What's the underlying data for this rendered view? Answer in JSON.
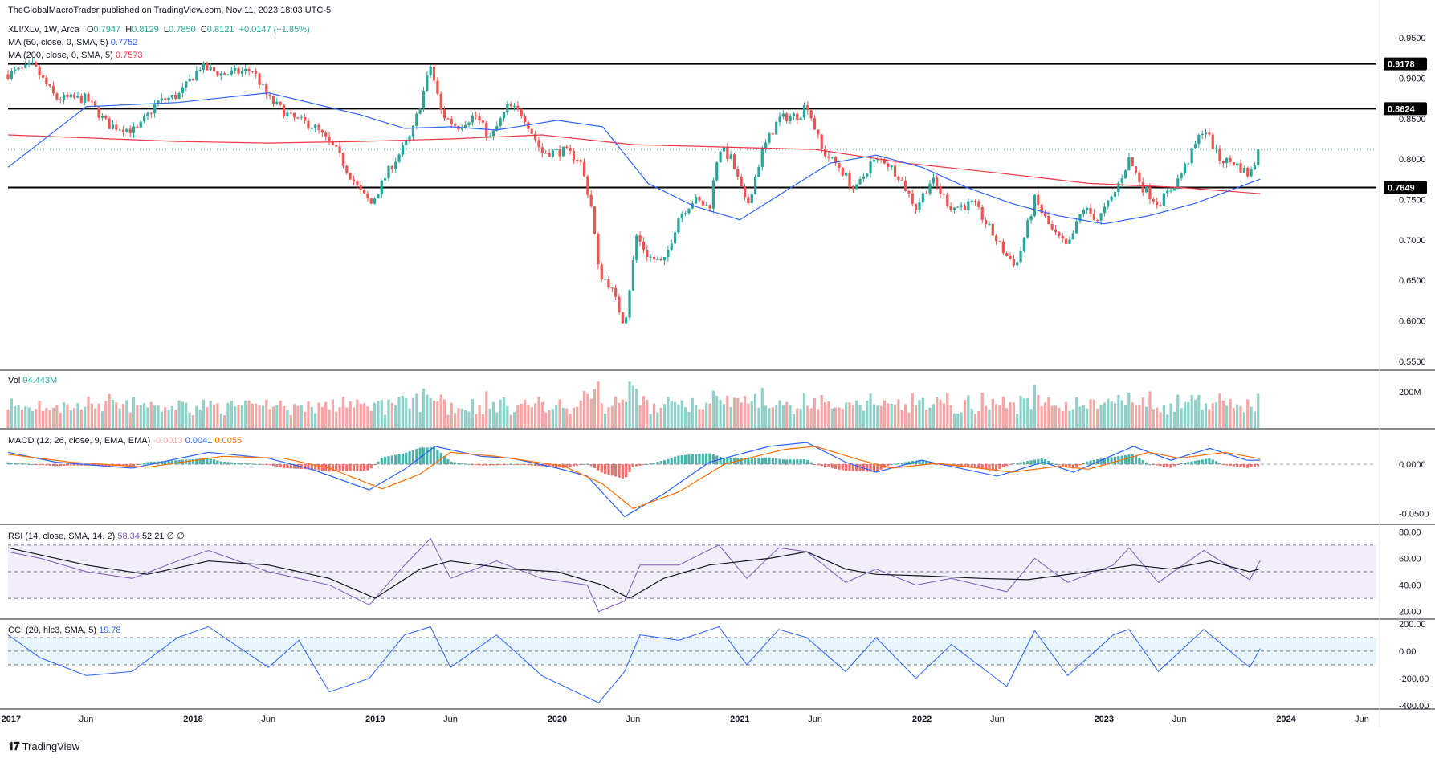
{
  "header": {
    "publisher": "TheGlobalMacroTrader published on TradingView.com, Nov 11, 2023 18:03 UTC-5"
  },
  "legend": {
    "symbol": "XLI/XLV, 1W, Arca",
    "open_lbl": "O",
    "open": "0.7947",
    "high_lbl": "H",
    "high": "0.8129",
    "low_lbl": "L",
    "low": "0.7850",
    "close_lbl": "C",
    "close": "0.8121",
    "change": "+0.0147 (+1.85%)",
    "ma50_label": "MA (50, close, 0, SMA, 5)",
    "ma50_value": "0.7752",
    "ma200_label": "MA (200, close, 0, SMA, 5)",
    "ma200_value": "0.7573",
    "vol_label": "Vol",
    "vol_value": "94.443M",
    "macd_label": "MACD (12, 26, close, 9, EMA, EMA)",
    "macd_hist": "-0.0013",
    "macd_line": "0.0041",
    "macd_signal": "0.0055",
    "rsi_label": "RSI (14, close, SMA, 14, 2)",
    "rsi_value": "58.34",
    "rsi_ma": "52.21",
    "rsi_d1": "∅",
    "rsi_d2": "∅",
    "cci_label": "CCI (20, hlc3, SMA, 5)",
    "cci_value": "19.78"
  },
  "colors": {
    "up": "#26a69a",
    "down": "#ef5350",
    "ma50": "#2962ff",
    "ma200": "#f23645",
    "macd": "#2962ff",
    "signal": "#ff6d00",
    "rsi": "#7e57c2",
    "cci": "#2962ff",
    "vol_up": "#8fd1c9",
    "vol_down": "#f4a6a4"
  },
  "chart_data": {
    "type": "candlestick",
    "symbol": "XLI/XLV",
    "timeframe": "1W",
    "x_range": [
      "2016-12-26",
      "2024-06-30"
    ],
    "x_ticks": [
      {
        "date": "2017-01-01",
        "label": "2017"
      },
      {
        "date": "2017-06-01",
        "label": "Jun"
      },
      {
        "date": "2018-01-01",
        "label": "2018"
      },
      {
        "date": "2018-06-01",
        "label": "Jun"
      },
      {
        "date": "2019-01-01",
        "label": "2019"
      },
      {
        "date": "2019-06-01",
        "label": "Jun"
      },
      {
        "date": "2020-01-01",
        "label": "2020"
      },
      {
        "date": "2020-06-01",
        "label": "Jun"
      },
      {
        "date": "2021-01-01",
        "label": "2021"
      },
      {
        "date": "2021-06-01",
        "label": "Jun"
      },
      {
        "date": "2022-01-01",
        "label": "2022"
      },
      {
        "date": "2022-06-01",
        "label": "Jun"
      },
      {
        "date": "2023-01-01",
        "label": "2023"
      },
      {
        "date": "2023-06-01",
        "label": "Jun"
      },
      {
        "date": "2024-01-01",
        "label": "2024"
      },
      {
        "date": "2024-06-01",
        "label": "Jun"
      }
    ],
    "price_axis": {
      "ylim": [
        0.54,
        0.975
      ],
      "ticks": [
        "0.9500",
        "0.9000",
        "0.8500",
        "0.8000",
        "0.7500",
        "0.7000",
        "0.6500",
        "0.6000",
        "0.5500"
      ]
    },
    "horizontal_levels": [
      "0.9178",
      "0.8624",
      "0.7649"
    ],
    "last_close": 0.8121,
    "close_path": [
      [
        "2016-12-26",
        0.905
      ],
      [
        "2017-02-15",
        0.915
      ],
      [
        "2017-04-01",
        0.875
      ],
      [
        "2017-06-01",
        0.875
      ],
      [
        "2017-07-15",
        0.842
      ],
      [
        "2017-09-10",
        0.835
      ],
      [
        "2017-10-20",
        0.87
      ],
      [
        "2017-12-05",
        0.88
      ],
      [
        "2018-01-15",
        0.914
      ],
      [
        "2018-03-01",
        0.905
      ],
      [
        "2018-05-01",
        0.91
      ],
      [
        "2018-06-01",
        0.875
      ],
      [
        "2018-07-15",
        0.852
      ],
      [
        "2018-09-01",
        0.84
      ],
      [
        "2018-10-15",
        0.81
      ],
      [
        "2018-12-01",
        0.76
      ],
      [
        "2018-12-24",
        0.745
      ],
      [
        "2019-02-01",
        0.79
      ],
      [
        "2019-03-15",
        0.83
      ],
      [
        "2019-04-22",
        0.915
      ],
      [
        "2019-05-15",
        0.855
      ],
      [
        "2019-06-15",
        0.84
      ],
      [
        "2019-07-20",
        0.855
      ],
      [
        "2019-08-20",
        0.825
      ],
      [
        "2019-09-25",
        0.866
      ],
      [
        "2019-10-25",
        0.855
      ],
      [
        "2019-12-01",
        0.808
      ],
      [
        "2020-01-15",
        0.81
      ],
      [
        "2020-02-15",
        0.8
      ],
      [
        "2020-03-10",
        0.74
      ],
      [
        "2020-03-24",
        0.66
      ],
      [
        "2020-04-15",
        0.645
      ],
      [
        "2020-05-15",
        0.595
      ],
      [
        "2020-06-08",
        0.705
      ],
      [
        "2020-07-01",
        0.68
      ],
      [
        "2020-08-01",
        0.67
      ],
      [
        "2020-09-01",
        0.73
      ],
      [
        "2020-10-01",
        0.75
      ],
      [
        "2020-11-01",
        0.74
      ],
      [
        "2020-11-20",
        0.815
      ],
      [
        "2020-12-15",
        0.8
      ],
      [
        "2021-01-15",
        0.74
      ],
      [
        "2021-02-15",
        0.81
      ],
      [
        "2021-03-20",
        0.85
      ],
      [
        "2021-05-01",
        0.855
      ],
      [
        "2021-05-15",
        0.87
      ],
      [
        "2021-06-15",
        0.81
      ],
      [
        "2021-07-20",
        0.79
      ],
      [
        "2021-08-20",
        0.76
      ],
      [
        "2021-09-20",
        0.795
      ],
      [
        "2021-10-15",
        0.8
      ],
      [
        "2021-11-15",
        0.78
      ],
      [
        "2021-12-20",
        0.74
      ],
      [
        "2022-01-20",
        0.775
      ],
      [
        "2022-03-01",
        0.74
      ],
      [
        "2022-04-15",
        0.745
      ],
      [
        "2022-05-20",
        0.71
      ],
      [
        "2022-06-20",
        0.68
      ],
      [
        "2022-07-10",
        0.67
      ],
      [
        "2022-08-15",
        0.75
      ],
      [
        "2022-09-20",
        0.71
      ],
      [
        "2022-10-20",
        0.69
      ],
      [
        "2022-11-20",
        0.74
      ],
      [
        "2022-12-20",
        0.725
      ],
      [
        "2023-01-20",
        0.755
      ],
      [
        "2023-02-20",
        0.8
      ],
      [
        "2023-03-20",
        0.765
      ],
      [
        "2023-04-20",
        0.745
      ],
      [
        "2023-05-25",
        0.77
      ],
      [
        "2023-06-20",
        0.8
      ],
      [
        "2023-07-20",
        0.84
      ],
      [
        "2023-08-20",
        0.8
      ],
      [
        "2023-09-20",
        0.795
      ],
      [
        "2023-10-20",
        0.78
      ],
      [
        "2023-11-10",
        0.8121
      ]
    ],
    "ma50_path": [
      [
        "2016-12-26",
        0.79
      ],
      [
        "2017-06-01",
        0.865
      ],
      [
        "2017-12-01",
        0.87
      ],
      [
        "2018-06-01",
        0.882
      ],
      [
        "2018-12-01",
        0.855
      ],
      [
        "2019-03-01",
        0.838
      ],
      [
        "2019-06-01",
        0.84
      ],
      [
        "2019-09-01",
        0.836
      ],
      [
        "2020-01-01",
        0.848
      ],
      [
        "2020-04-01",
        0.84
      ],
      [
        "2020-07-01",
        0.77
      ],
      [
        "2020-10-01",
        0.742
      ],
      [
        "2021-01-01",
        0.725
      ],
      [
        "2021-04-01",
        0.76
      ],
      [
        "2021-07-01",
        0.795
      ],
      [
        "2021-10-01",
        0.805
      ],
      [
        "2022-01-01",
        0.79
      ],
      [
        "2022-04-01",
        0.765
      ],
      [
        "2022-07-01",
        0.745
      ],
      [
        "2022-10-01",
        0.73
      ],
      [
        "2023-01-01",
        0.72
      ],
      [
        "2023-04-01",
        0.73
      ],
      [
        "2023-07-01",
        0.745
      ],
      [
        "2023-11-10",
        0.7752
      ]
    ],
    "ma200_path": [
      [
        "2016-12-26",
        0.83
      ],
      [
        "2017-12-01",
        0.822
      ],
      [
        "2018-06-01",
        0.82
      ],
      [
        "2018-12-01",
        0.822
      ],
      [
        "2019-06-01",
        0.825
      ],
      [
        "2019-12-01",
        0.83
      ],
      [
        "2020-06-01",
        0.818
      ],
      [
        "2020-12-01",
        0.815
      ],
      [
        "2021-06-01",
        0.812
      ],
      [
        "2021-12-01",
        0.795
      ],
      [
        "2022-06-01",
        0.783
      ],
      [
        "2022-12-01",
        0.77
      ],
      [
        "2023-06-01",
        0.765
      ],
      [
        "2023-11-10",
        0.7573
      ]
    ],
    "volume": {
      "axis_tick": "200M",
      "last": "94.443M"
    },
    "macd": {
      "ylim": [
        -0.06,
        0.035
      ],
      "ticks": [
        "0.0000",
        "-0.0500"
      ],
      "macd_path": [
        [
          "2016-12-26",
          0.012
        ],
        [
          "2017-04-01",
          0.002
        ],
        [
          "2017-09-01",
          -0.004
        ],
        [
          "2018-02-01",
          0.012
        ],
        [
          "2018-06-01",
          0.006
        ],
        [
          "2018-09-01",
          -0.006
        ],
        [
          "2018-12-20",
          -0.026
        ],
        [
          "2019-03-01",
          -0.005
        ],
        [
          "2019-05-01",
          0.018
        ],
        [
          "2019-08-01",
          0.008
        ],
        [
          "2019-10-01",
          0.006
        ],
        [
          "2020-01-01",
          -0.004
        ],
        [
          "2020-03-01",
          -0.012
        ],
        [
          "2020-05-15",
          -0.053
        ],
        [
          "2020-08-01",
          -0.03
        ],
        [
          "2020-11-01",
          0.002
        ],
        [
          "2021-03-01",
          0.018
        ],
        [
          "2021-05-15",
          0.022
        ],
        [
          "2021-08-01",
          0.002
        ],
        [
          "2021-10-01",
          -0.008
        ],
        [
          "2022-01-01",
          0.004
        ],
        [
          "2022-06-01",
          -0.012
        ],
        [
          "2022-09-01",
          0.002
        ],
        [
          "2022-11-01",
          -0.008
        ],
        [
          "2023-03-01",
          0.018
        ],
        [
          "2023-05-15",
          0.004
        ],
        [
          "2023-08-01",
          0.016
        ],
        [
          "2023-10-15",
          0.004
        ],
        [
          "2023-11-10",
          0.0041
        ]
      ],
      "signal_path": [
        [
          "2016-12-26",
          0.01
        ],
        [
          "2017-05-01",
          0.002
        ],
        [
          "2017-10-01",
          -0.003
        ],
        [
          "2018-03-01",
          0.008
        ],
        [
          "2018-07-01",
          0.006
        ],
        [
          "2018-10-01",
          -0.004
        ],
        [
          "2019-01-15",
          -0.025
        ],
        [
          "2019-04-01",
          -0.01
        ],
        [
          "2019-06-01",
          0.012
        ],
        [
          "2019-09-01",
          0.008
        ],
        [
          "2020-01-15",
          -0.002
        ],
        [
          "2020-04-01",
          -0.02
        ],
        [
          "2020-06-01",
          -0.045
        ],
        [
          "2020-09-01",
          -0.028
        ],
        [
          "2020-12-01",
          0.0
        ],
        [
          "2021-04-01",
          0.015
        ],
        [
          "2021-06-01",
          0.018
        ],
        [
          "2021-09-01",
          0.004
        ],
        [
          "2021-11-01",
          -0.004
        ],
        [
          "2022-02-01",
          0.001
        ],
        [
          "2022-07-01",
          -0.008
        ],
        [
          "2022-10-01",
          -0.002
        ],
        [
          "2022-12-01",
          -0.005
        ],
        [
          "2023-04-01",
          0.012
        ],
        [
          "2023-06-01",
          0.006
        ],
        [
          "2023-09-01",
          0.012
        ],
        [
          "2023-11-10",
          0.0055
        ]
      ]
    },
    "rsi": {
      "ylim": [
        15,
        85
      ],
      "ticks": [
        "80.00",
        "60.00",
        "40.00",
        "20.00"
      ],
      "bands": [
        70,
        30
      ],
      "rsi_path": [
        [
          "2016-12-26",
          65
        ],
        [
          "2017-03-01",
          60
        ],
        [
          "2017-06-01",
          50
        ],
        [
          "2017-09-01",
          45
        ],
        [
          "2017-12-01",
          58
        ],
        [
          "2018-02-01",
          66
        ],
        [
          "2018-06-01",
          50
        ],
        [
          "2018-10-01",
          40
        ],
        [
          "2018-12-20",
          25
        ],
        [
          "2019-03-01",
          55
        ],
        [
          "2019-04-22",
          75
        ],
        [
          "2019-06-01",
          45
        ],
        [
          "2019-09-01",
          58
        ],
        [
          "2019-12-01",
          45
        ],
        [
          "2020-03-01",
          40
        ],
        [
          "2020-03-24",
          20
        ],
        [
          "2020-05-15",
          28
        ],
        [
          "2020-06-15",
          55
        ],
        [
          "2020-09-01",
          55
        ],
        [
          "2020-11-20",
          70
        ],
        [
          "2021-01-15",
          45
        ],
        [
          "2021-03-20",
          68
        ],
        [
          "2021-05-15",
          65
        ],
        [
          "2021-08-01",
          42
        ],
        [
          "2021-10-01",
          52
        ],
        [
          "2021-12-20",
          40
        ],
        [
          "2022-03-01",
          45
        ],
        [
          "2022-06-20",
          35
        ],
        [
          "2022-08-15",
          60
        ],
        [
          "2022-10-20",
          42
        ],
        [
          "2023-01-20",
          55
        ],
        [
          "2023-02-20",
          68
        ],
        [
          "2023-04-20",
          42
        ],
        [
          "2023-07-20",
          66
        ],
        [
          "2023-10-20",
          44
        ],
        [
          "2023-11-10",
          58.34
        ]
      ],
      "rsi_ma_path": [
        [
          "2016-12-26",
          68
        ],
        [
          "2017-06-01",
          55
        ],
        [
          "2017-10-01",
          48
        ],
        [
          "2018-02-01",
          58
        ],
        [
          "2018-06-01",
          55
        ],
        [
          "2018-10-01",
          45
        ],
        [
          "2019-01-01",
          30
        ],
        [
          "2019-04-01",
          52
        ],
        [
          "2019-06-01",
          58
        ],
        [
          "2019-10-01",
          52
        ],
        [
          "2020-01-01",
          50
        ],
        [
          "2020-04-01",
          40
        ],
        [
          "2020-05-25",
          30
        ],
        [
          "2020-08-01",
          45
        ],
        [
          "2020-11-01",
          55
        ],
        [
          "2021-03-01",
          60
        ],
        [
          "2021-05-15",
          65
        ],
        [
          "2021-08-01",
          52
        ],
        [
          "2021-10-01",
          48
        ],
        [
          "2022-01-01",
          47
        ],
        [
          "2022-05-01",
          45
        ],
        [
          "2022-08-01",
          44
        ],
        [
          "2022-12-01",
          50
        ],
        [
          "2023-03-01",
          55
        ],
        [
          "2023-05-15",
          52
        ],
        [
          "2023-08-01",
          58
        ],
        [
          "2023-10-20",
          50
        ],
        [
          "2023-11-10",
          52.21
        ]
      ]
    },
    "cci": {
      "ylim": [
        -420,
        230
      ],
      "ticks": [
        "200.00",
        "0.00",
        "-200.00",
        "-400.00"
      ],
      "bands": [
        100,
        -100
      ],
      "cci_path": [
        [
          "2016-12-26",
          120
        ],
        [
          "2017-03-01",
          -50
        ],
        [
          "2017-06-01",
          -180
        ],
        [
          "2017-09-01",
          -150
        ],
        [
          "2017-12-01",
          100
        ],
        [
          "2018-02-01",
          180
        ],
        [
          "2018-06-01",
          -120
        ],
        [
          "2018-08-01",
          80
        ],
        [
          "2018-10-01",
          -300
        ],
        [
          "2018-12-20",
          -200
        ],
        [
          "2019-03-01",
          120
        ],
        [
          "2019-04-22",
          180
        ],
        [
          "2019-06-01",
          -120
        ],
        [
          "2019-09-01",
          120
        ],
        [
          "2019-12-01",
          -180
        ],
        [
          "2020-03-24",
          -380
        ],
        [
          "2020-05-15",
          -150
        ],
        [
          "2020-06-15",
          120
        ],
        [
          "2020-09-01",
          80
        ],
        [
          "2020-11-20",
          180
        ],
        [
          "2021-01-15",
          -100
        ],
        [
          "2021-03-20",
          160
        ],
        [
          "2021-05-15",
          100
        ],
        [
          "2021-08-01",
          -150
        ],
        [
          "2021-10-01",
          100
        ],
        [
          "2021-12-20",
          -200
        ],
        [
          "2022-03-01",
          50
        ],
        [
          "2022-06-20",
          -260
        ],
        [
          "2022-08-15",
          150
        ],
        [
          "2022-10-20",
          -180
        ],
        [
          "2023-01-20",
          120
        ],
        [
          "2023-02-20",
          160
        ],
        [
          "2023-04-20",
          -150
        ],
        [
          "2023-07-20",
          160
        ],
        [
          "2023-10-20",
          -120
        ],
        [
          "2023-11-10",
          19.78
        ]
      ]
    }
  },
  "footer": {
    "brand": "TradingView"
  }
}
